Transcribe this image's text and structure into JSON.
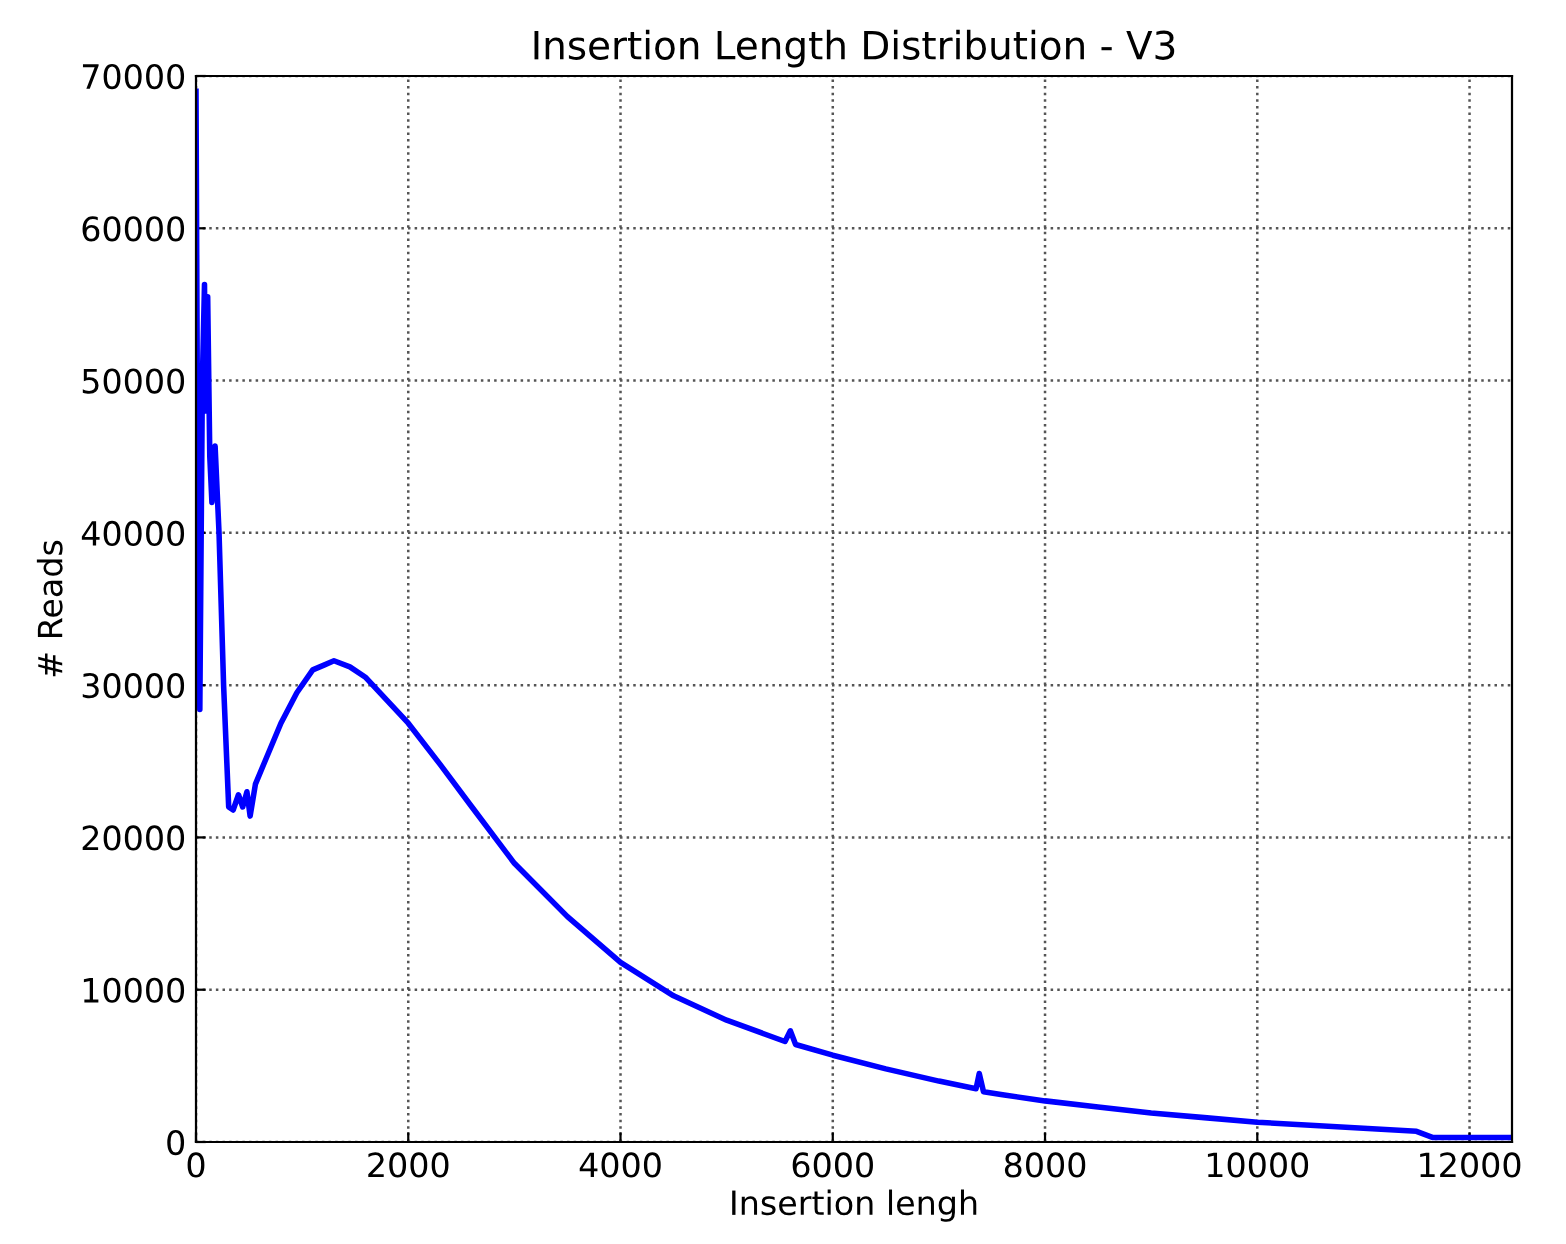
{
  "chart_data": {
    "type": "line",
    "title": "Insertion Length Distribution - V3",
    "xlabel": "Insertion lengh",
    "ylabel": "# Reads",
    "x": [
      0,
      15,
      36,
      60,
      80,
      90,
      110,
      130,
      150,
      180,
      217,
      260,
      308,
      350,
      400,
      440,
      480,
      510,
      560,
      650,
      800,
      950,
      1100,
      1200,
      1300,
      1450,
      1600,
      1800,
      2000,
      2300,
      2600,
      3000,
      3500,
      4000,
      4500,
      5000,
      5550,
      5600,
      5650,
      6000,
      6500,
      7000,
      7350,
      7380,
      7420,
      7600,
      8000,
      8500,
      9000,
      9500,
      10000,
      10500,
      11000,
      11500,
      11650,
      11800,
      12400
    ],
    "series": [
      {
        "color": "#0000ff",
        "values": [
          69000,
          45000,
          28400,
          50000,
          56300,
          48000,
          55500,
          45000,
          42000,
          45700,
          40000,
          30000,
          22000,
          21800,
          22800,
          22000,
          23000,
          21400,
          23500,
          25000,
          27500,
          29500,
          31000,
          31300,
          31600,
          31200,
          30500,
          29000,
          27500,
          24800,
          22000,
          18300,
          14800,
          11800,
          9600,
          8000,
          6600,
          7300,
          6400,
          5700,
          4800,
          4000,
          3500,
          4500,
          3300,
          3100,
          2700,
          2300,
          1900,
          1600,
          1300,
          1100,
          900,
          700,
          300,
          300,
          300
        ]
      }
    ],
    "xlim": [
      0,
      12400
    ],
    "xticks": [
      0,
      2000,
      4000,
      6000,
      8000,
      10000,
      12000
    ],
    "ylim": [
      0,
      70000
    ],
    "yticks": [
      0,
      10000,
      20000,
      30000,
      40000,
      50000,
      60000,
      70000
    ],
    "grid": true,
    "line_style": "solid",
    "marker": "none"
  }
}
